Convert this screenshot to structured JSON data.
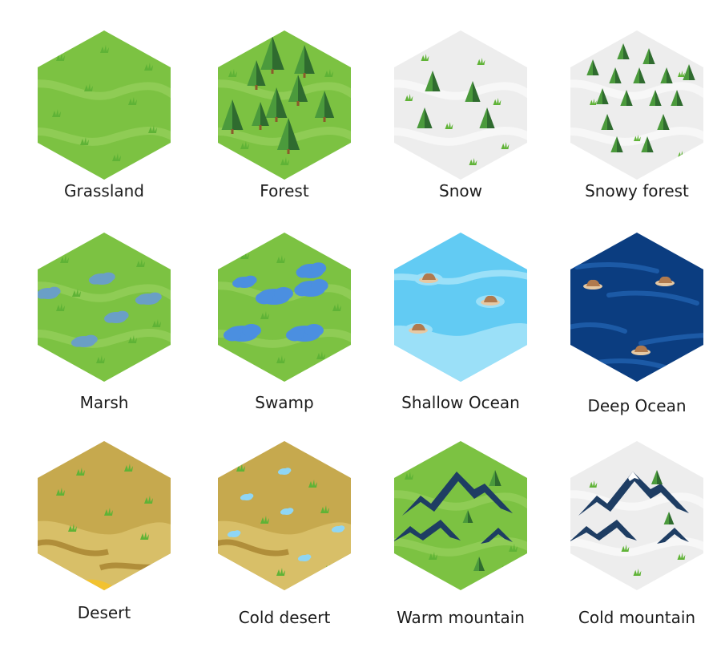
{
  "tiles": [
    {
      "id": "grassland",
      "label": "Grassland",
      "base": "#7cc242",
      "pattern": "grass"
    },
    {
      "id": "forest",
      "label": "Forest",
      "base": "#7cc242",
      "pattern": "forest"
    },
    {
      "id": "snow",
      "label": "Snow",
      "base": "#ededed",
      "pattern": "snow"
    },
    {
      "id": "snowy-forest",
      "label": "Snowy forest",
      "base": "#ededed",
      "pattern": "snowy-forest"
    },
    {
      "id": "marsh",
      "label": "Marsh",
      "base": "#7cc242",
      "pattern": "marsh"
    },
    {
      "id": "swamp",
      "label": "Swamp",
      "base": "#7cc242",
      "pattern": "swamp"
    },
    {
      "id": "shallow-ocean",
      "label": "Shallow Ocean",
      "base": "#62cbf3",
      "pattern": "shallow"
    },
    {
      "id": "deep-ocean",
      "label": "Deep Ocean",
      "base": "#0b3d80",
      "pattern": "deep"
    },
    {
      "id": "desert",
      "label": "Desert",
      "base": "#c6a94e",
      "pattern": "desert"
    },
    {
      "id": "cold-desert",
      "label": "Cold desert",
      "base": "#c6a94e",
      "pattern": "cold-desert"
    },
    {
      "id": "warm-mountain",
      "label": "Warm mountain",
      "base": "#7cc242",
      "pattern": "warm-mountain"
    },
    {
      "id": "cold-mountain",
      "label": "Cold mountain",
      "base": "#ededed",
      "pattern": "cold-mountain"
    }
  ],
  "colors": {
    "grass_tuft": "#5fb336",
    "grass_streak": "#8fcc55",
    "tree_dark": "#2f6b2f",
    "tree_light": "#4b9a3c",
    "trunk": "#8b5a2b",
    "snow_streak": "#f7f7f7",
    "marsh_water": "#6a9fc6",
    "swamp_water": "#4b8fe0",
    "shallow_foam": "#9be0f8",
    "deep_streak": "#1c5aa6",
    "rock": "#b07a4e",
    "rock_light": "#e6c9a4",
    "desert_dark": "#b08e3a",
    "desert_light": "#d8bf68",
    "sand_bright": "#f2c230",
    "ice": "#8fd6f5",
    "mountain": "#1e3d63",
    "mountain_snow": "#ffffff"
  }
}
